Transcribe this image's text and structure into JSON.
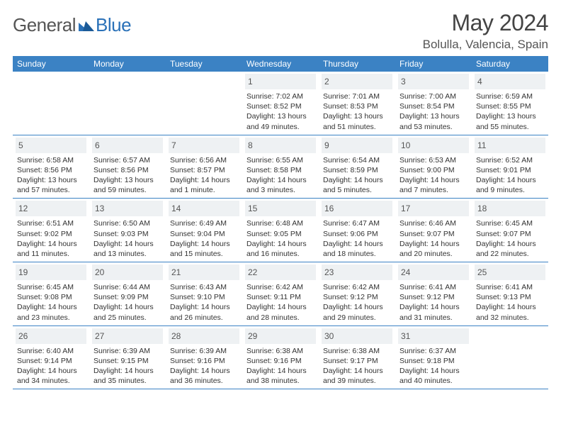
{
  "brand": {
    "part1": "General",
    "part2": "Blue"
  },
  "title": "May 2024",
  "location": "Bolulla, Valencia, Spain",
  "colors": {
    "header_bg": "#3b82c4",
    "header_text": "#ffffff",
    "daynum_bg": "#eef1f3",
    "rule": "#3b82c4",
    "brand_blue": "#2a71b8",
    "text_dark": "#444444"
  },
  "day_labels": [
    "Sunday",
    "Monday",
    "Tuesday",
    "Wednesday",
    "Thursday",
    "Friday",
    "Saturday"
  ],
  "layout": {
    "first_weekday_index": 3,
    "days_in_month": 31
  },
  "days": {
    "1": {
      "sunrise": "7:02 AM",
      "sunset": "8:52 PM",
      "daylight": "13 hours and 49 minutes."
    },
    "2": {
      "sunrise": "7:01 AM",
      "sunset": "8:53 PM",
      "daylight": "13 hours and 51 minutes."
    },
    "3": {
      "sunrise": "7:00 AM",
      "sunset": "8:54 PM",
      "daylight": "13 hours and 53 minutes."
    },
    "4": {
      "sunrise": "6:59 AM",
      "sunset": "8:55 PM",
      "daylight": "13 hours and 55 minutes."
    },
    "5": {
      "sunrise": "6:58 AM",
      "sunset": "8:56 PM",
      "daylight": "13 hours and 57 minutes."
    },
    "6": {
      "sunrise": "6:57 AM",
      "sunset": "8:56 PM",
      "daylight": "13 hours and 59 minutes."
    },
    "7": {
      "sunrise": "6:56 AM",
      "sunset": "8:57 PM",
      "daylight": "14 hours and 1 minute."
    },
    "8": {
      "sunrise": "6:55 AM",
      "sunset": "8:58 PM",
      "daylight": "14 hours and 3 minutes."
    },
    "9": {
      "sunrise": "6:54 AM",
      "sunset": "8:59 PM",
      "daylight": "14 hours and 5 minutes."
    },
    "10": {
      "sunrise": "6:53 AM",
      "sunset": "9:00 PM",
      "daylight": "14 hours and 7 minutes."
    },
    "11": {
      "sunrise": "6:52 AM",
      "sunset": "9:01 PM",
      "daylight": "14 hours and 9 minutes."
    },
    "12": {
      "sunrise": "6:51 AM",
      "sunset": "9:02 PM",
      "daylight": "14 hours and 11 minutes."
    },
    "13": {
      "sunrise": "6:50 AM",
      "sunset": "9:03 PM",
      "daylight": "14 hours and 13 minutes."
    },
    "14": {
      "sunrise": "6:49 AM",
      "sunset": "9:04 PM",
      "daylight": "14 hours and 15 minutes."
    },
    "15": {
      "sunrise": "6:48 AM",
      "sunset": "9:05 PM",
      "daylight": "14 hours and 16 minutes."
    },
    "16": {
      "sunrise": "6:47 AM",
      "sunset": "9:06 PM",
      "daylight": "14 hours and 18 minutes."
    },
    "17": {
      "sunrise": "6:46 AM",
      "sunset": "9:07 PM",
      "daylight": "14 hours and 20 minutes."
    },
    "18": {
      "sunrise": "6:45 AM",
      "sunset": "9:07 PM",
      "daylight": "14 hours and 22 minutes."
    },
    "19": {
      "sunrise": "6:45 AM",
      "sunset": "9:08 PM",
      "daylight": "14 hours and 23 minutes."
    },
    "20": {
      "sunrise": "6:44 AM",
      "sunset": "9:09 PM",
      "daylight": "14 hours and 25 minutes."
    },
    "21": {
      "sunrise": "6:43 AM",
      "sunset": "9:10 PM",
      "daylight": "14 hours and 26 minutes."
    },
    "22": {
      "sunrise": "6:42 AM",
      "sunset": "9:11 PM",
      "daylight": "14 hours and 28 minutes."
    },
    "23": {
      "sunrise": "6:42 AM",
      "sunset": "9:12 PM",
      "daylight": "14 hours and 29 minutes."
    },
    "24": {
      "sunrise": "6:41 AM",
      "sunset": "9:12 PM",
      "daylight": "14 hours and 31 minutes."
    },
    "25": {
      "sunrise": "6:41 AM",
      "sunset": "9:13 PM",
      "daylight": "14 hours and 32 minutes."
    },
    "26": {
      "sunrise": "6:40 AM",
      "sunset": "9:14 PM",
      "daylight": "14 hours and 34 minutes."
    },
    "27": {
      "sunrise": "6:39 AM",
      "sunset": "9:15 PM",
      "daylight": "14 hours and 35 minutes."
    },
    "28": {
      "sunrise": "6:39 AM",
      "sunset": "9:16 PM",
      "daylight": "14 hours and 36 minutes."
    },
    "29": {
      "sunrise": "6:38 AM",
      "sunset": "9:16 PM",
      "daylight": "14 hours and 38 minutes."
    },
    "30": {
      "sunrise": "6:38 AM",
      "sunset": "9:17 PM",
      "daylight": "14 hours and 39 minutes."
    },
    "31": {
      "sunrise": "6:37 AM",
      "sunset": "9:18 PM",
      "daylight": "14 hours and 40 minutes."
    }
  },
  "field_labels": {
    "sunrise": "Sunrise:",
    "sunset": "Sunset:",
    "daylight": "Daylight:"
  }
}
